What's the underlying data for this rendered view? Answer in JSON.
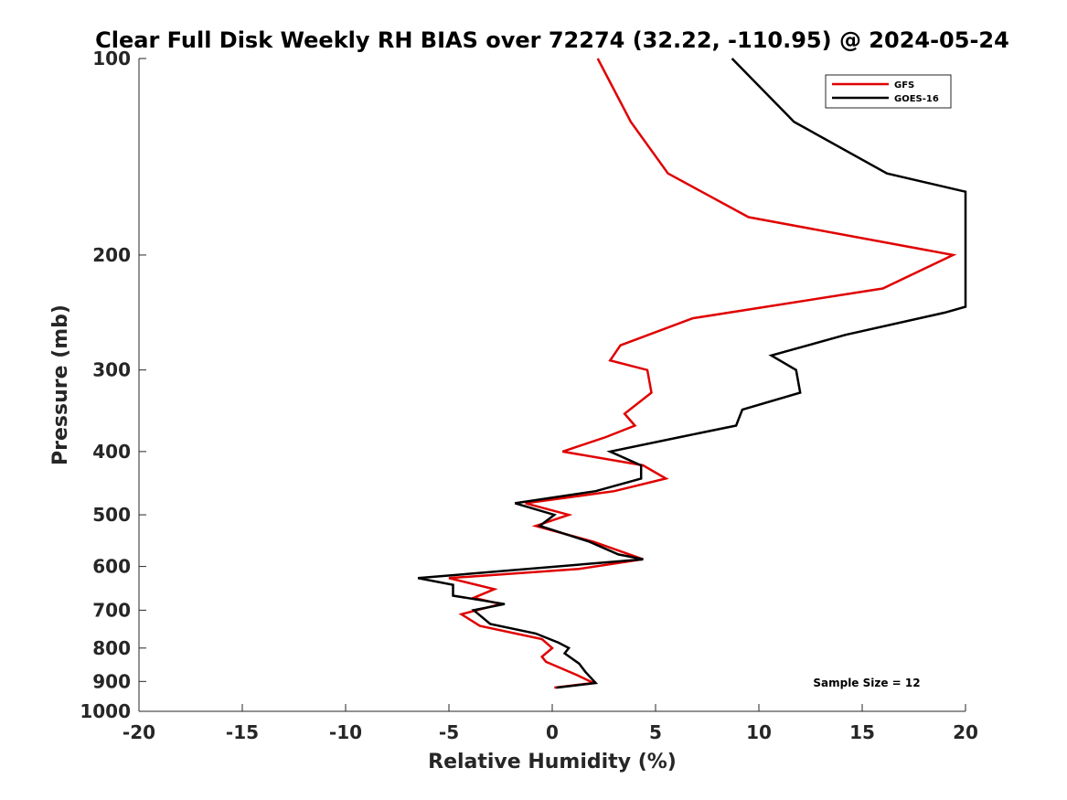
{
  "chart_data": {
    "type": "line",
    "title": "Clear Full Disk Weekly RH BIAS over 72274 (32.22, -110.95) @ 2024-05-24",
    "xlabel": "Relative Humidity (%)",
    "ylabel": "Pressure (mb)",
    "xlim": [
      -20,
      20
    ],
    "ylim": [
      100,
      1000
    ],
    "y_scale": "log",
    "y_reversed": true,
    "x_ticks": [
      -20,
      -15,
      -10,
      -5,
      0,
      5,
      10,
      15,
      20
    ],
    "y_ticks": [
      100,
      200,
      300,
      400,
      500,
      600,
      700,
      800,
      900,
      1000
    ],
    "grid": false,
    "legend_position": "top-right",
    "annotation": "Sample Size = 12",
    "series": [
      {
        "name": "GFS",
        "color": "#e00000",
        "points": [
          [
            2.2,
            100
          ],
          [
            3.8,
            125
          ],
          [
            5.6,
            150
          ],
          [
            9.5,
            175
          ],
          [
            19.4,
            200
          ],
          [
            16.0,
            225
          ],
          [
            6.8,
            250
          ],
          [
            3.3,
            275
          ],
          [
            2.8,
            290
          ],
          [
            4.6,
            300
          ],
          [
            4.8,
            325
          ],
          [
            3.5,
            350
          ],
          [
            4.0,
            365
          ],
          [
            2.6,
            380
          ],
          [
            0.5,
            400
          ],
          [
            4.4,
            420
          ],
          [
            5.5,
            440
          ],
          [
            3.0,
            460
          ],
          [
            -1.3,
            480
          ],
          [
            0.8,
            500
          ],
          [
            -0.8,
            520
          ],
          [
            2.0,
            550
          ],
          [
            4.4,
            585
          ],
          [
            1.3,
            605
          ],
          [
            -5.0,
            625
          ],
          [
            -2.8,
            650
          ],
          [
            -3.8,
            670
          ],
          [
            -2.5,
            685
          ],
          [
            -4.4,
            710
          ],
          [
            -3.5,
            740
          ],
          [
            -0.5,
            775
          ],
          [
            0.0,
            800
          ],
          [
            -0.5,
            825
          ],
          [
            -0.3,
            840
          ],
          [
            1.2,
            880
          ],
          [
            2.0,
            905
          ],
          [
            0.1,
            920
          ]
        ]
      },
      {
        "name": "GOES-16",
        "color": "#000000",
        "points": [
          [
            8.7,
            100
          ],
          [
            11.7,
            125
          ],
          [
            16.2,
            150
          ],
          [
            20.0,
            160
          ],
          [
            20.0,
            240
          ],
          [
            19.0,
            245
          ],
          [
            14.2,
            265
          ],
          [
            10.6,
            285
          ],
          [
            11.8,
            300
          ],
          [
            12.0,
            325
          ],
          [
            9.2,
            345
          ],
          [
            8.9,
            365
          ],
          [
            6.2,
            380
          ],
          [
            2.8,
            400
          ],
          [
            4.3,
            420
          ],
          [
            4.3,
            440
          ],
          [
            2.1,
            460
          ],
          [
            -1.8,
            480
          ],
          [
            0.1,
            500
          ],
          [
            -0.6,
            520
          ],
          [
            1.8,
            550
          ],
          [
            3.2,
            575
          ],
          [
            4.4,
            585
          ],
          [
            -6.5,
            625
          ],
          [
            -4.8,
            640
          ],
          [
            -4.8,
            665
          ],
          [
            -2.3,
            685
          ],
          [
            -3.8,
            700
          ],
          [
            -3.0,
            735
          ],
          [
            -0.8,
            760
          ],
          [
            0.3,
            785
          ],
          [
            0.8,
            800
          ],
          [
            0.6,
            815
          ],
          [
            1.3,
            845
          ],
          [
            1.6,
            870
          ],
          [
            2.1,
            905
          ],
          [
            0.2,
            920
          ]
        ]
      }
    ]
  }
}
